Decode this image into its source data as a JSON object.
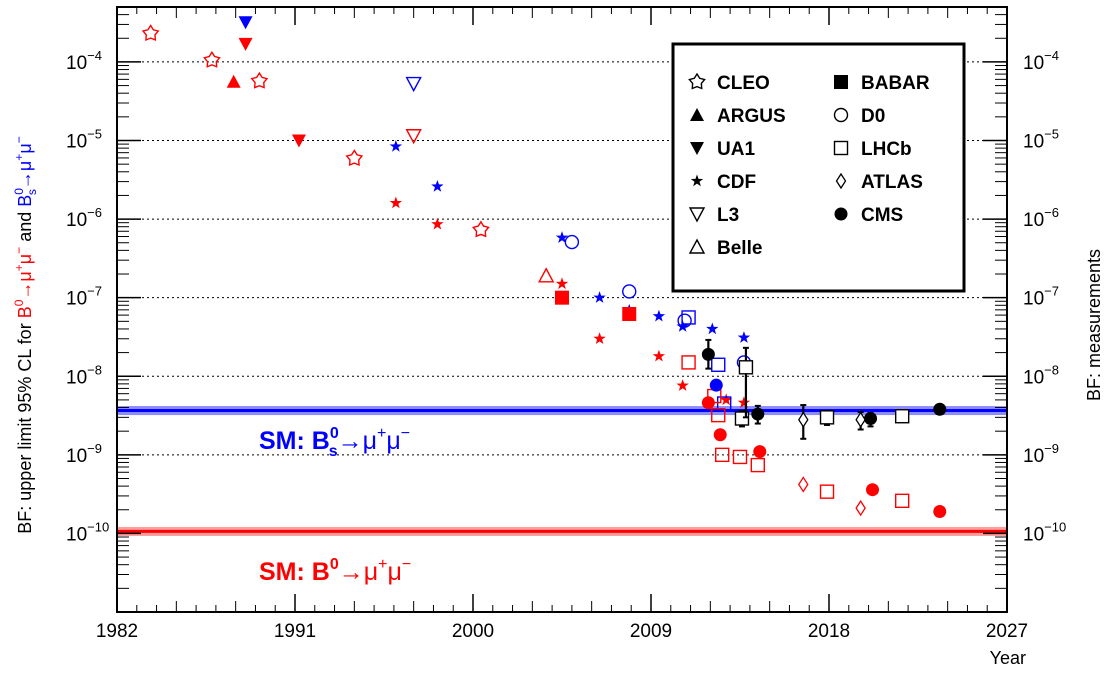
{
  "chart_data": {
    "type": "scatter",
    "x_axis": {
      "title": "Year",
      "range": [
        1982,
        2027
      ],
      "tick_values": [
        1982,
        1991,
        2000,
        2009,
        2018,
        2027
      ],
      "tick_labels": [
        "1982",
        "1991",
        "2000",
        "2009",
        "2018",
        "2027"
      ]
    },
    "y_axis": {
      "scale": "log",
      "range": [
        1e-11,
        0.0005
      ],
      "tick_values": [
        1e-10,
        1e-09,
        1e-08,
        1e-07,
        1e-06,
        1e-05,
        0.0001
      ],
      "tick_base": "10",
      "tick_exponents": [
        "−10",
        "−9",
        "−8",
        "−7",
        "−6",
        "−5",
        "−4"
      ],
      "grid": "dotted",
      "title_left": {
        "prefix": "BF: upper limit 95% CL for ",
        "bd_B": "B",
        "bd_sup": "0",
        "bd_rest": "→μ",
        "bd_sup2": "+",
        "bd_mu": "μ",
        "bd_sup3": "−",
        "and": " and ",
        "bs_B": "B",
        "bs_sup": "0",
        "bs_sub": "s",
        "bs_rest": "→μ",
        "bs_sup2": "+",
        "bs_mu": "μ",
        "bs_sup3": "−"
      },
      "title_right": "BF: measurements"
    },
    "colors": {
      "bd": "#ff0000",
      "bs": "#0000ff",
      "measurement": "#000000"
    },
    "sm_lines": [
      {
        "channel": "bs",
        "value": 3.66e-09,
        "color": "#0000ff",
        "band_color": "#8c8cff",
        "label": {
          "pre": "SM: B",
          "sup": "0",
          "sub": "s",
          "rest": "→μ",
          "sup2": "+",
          "mu": "μ",
          "sup3": "−"
        }
      },
      {
        "channel": "bd",
        "value": 1.06e-10,
        "color": "#ff0000",
        "band_color": "#ff9c9c",
        "label": {
          "pre": "SM: B",
          "sup": "0",
          "sub": "",
          "rest": "→μ",
          "sup2": "+",
          "mu": "μ",
          "sup3": "−"
        }
      }
    ],
    "legend": {
      "placement": "top-right",
      "items": [
        {
          "marker": "star-open",
          "label": "CLEO"
        },
        {
          "marker": "square-filled",
          "label": "BABAR"
        },
        {
          "marker": "triangle-up-filled",
          "label": "ARGUS"
        },
        {
          "marker": "circle-open",
          "label": "D0"
        },
        {
          "marker": "triangle-down-filled",
          "label": "UA1"
        },
        {
          "marker": "square-open",
          "label": "LHCb"
        },
        {
          "marker": "star-filled",
          "label": "CDF"
        },
        {
          "marker": "diamond-open",
          "label": "ATLAS"
        },
        {
          "marker": "triangle-down-open",
          "label": "L3"
        },
        {
          "marker": "circle-filled",
          "label": "CMS"
        },
        {
          "marker": "triangle-up-open",
          "label": "Belle"
        }
      ]
    },
    "series": [
      {
        "experiment": "CLEO",
        "channel": "bd",
        "marker": "star-open",
        "points": [
          [
            1983.7,
            0.00023
          ],
          [
            1986.8,
            0.000105
          ],
          [
            1989.2,
            5.7e-05
          ],
          [
            1994.0,
            5.9e-06
          ],
          [
            2000.4,
            7.3e-07
          ]
        ]
      },
      {
        "experiment": "ARGUS",
        "channel": "bd",
        "marker": "triangle-up-filled",
        "points": [
          [
            1987.9,
            5.6e-05
          ]
        ]
      },
      {
        "experiment": "UA1",
        "channel": "bd",
        "marker": "triangle-down-filled",
        "points": [
          [
            1988.5,
            0.00017
          ],
          [
            1991.2,
            1e-05
          ]
        ]
      },
      {
        "experiment": "UA1",
        "channel": "bs",
        "marker": "triangle-down-filled",
        "points": [
          [
            1988.5,
            0.00032
          ]
        ]
      },
      {
        "experiment": "L3",
        "channel": "bs",
        "marker": "triangle-down-open",
        "points": [
          [
            1997.0,
            5.3e-05
          ]
        ]
      },
      {
        "experiment": "L3",
        "channel": "bd",
        "marker": "triangle-down-open",
        "points": [
          [
            1997.0,
            1.15e-05
          ]
        ]
      },
      {
        "experiment": "CDF",
        "channel": "bs",
        "marker": "star-filled",
        "points": [
          [
            1996.1,
            8.4e-06
          ],
          [
            1998.2,
            2.6e-06
          ],
          [
            2004.5,
            5.8e-07
          ],
          [
            2006.4,
            1e-07
          ],
          [
            2007.9,
            6.9e-08
          ],
          [
            2009.4,
            5.8e-08
          ],
          [
            2010.6,
            4.3e-08
          ],
          [
            2012.1,
            4e-08
          ],
          [
            2013.7,
            3.1e-08
          ]
        ]
      },
      {
        "experiment": "CDF",
        "channel": "bd",
        "marker": "star-filled",
        "points": [
          [
            1996.1,
            1.6e-06
          ],
          [
            1998.2,
            8.6e-07
          ],
          [
            2004.5,
            1.5e-07
          ],
          [
            2006.4,
            3e-08
          ],
          [
            2009.4,
            1.8e-08
          ],
          [
            2010.6,
            7.6e-09
          ],
          [
            2012.8,
            5e-09
          ],
          [
            2013.7,
            4.6e-09
          ]
        ]
      },
      {
        "experiment": "Belle",
        "channel": "bd",
        "marker": "triangle-up-open",
        "points": [
          [
            2003.7,
            1.9e-07
          ]
        ]
      },
      {
        "experiment": "BABAR",
        "channel": "bd",
        "marker": "square-filled",
        "points": [
          [
            2004.5,
            1e-07
          ],
          [
            2007.9,
            6.2e-08
          ]
        ]
      },
      {
        "experiment": "D0",
        "channel": "bs",
        "marker": "circle-open",
        "points": [
          [
            2005.0,
            5.1e-07
          ],
          [
            2007.9,
            1.2e-07
          ],
          [
            2010.7,
            5.1e-08
          ],
          [
            2013.7,
            1.5e-08
          ]
        ]
      },
      {
        "experiment": "LHCb",
        "channel": "bs",
        "marker": "square-open",
        "points": [
          [
            2010.9,
            5.6e-08
          ],
          [
            2012.4,
            1.4e-08
          ],
          [
            2012.7,
            4.5e-09
          ]
        ]
      },
      {
        "experiment": "LHCb",
        "channel": "bd",
        "marker": "square-open",
        "points": [
          [
            2010.9,
            1.5e-08
          ],
          [
            2012.2,
            5.6e-09
          ],
          [
            2012.4,
            3.2e-09
          ],
          [
            2012.6,
            1e-09
          ],
          [
            2013.5,
            9.4e-10
          ],
          [
            2014.4,
            7.4e-10
          ],
          [
            2017.9,
            3.4e-10
          ],
          [
            2021.7,
            2.6e-10
          ]
        ]
      },
      {
        "experiment": "CMS",
        "channel": "bs",
        "marker": "circle-filled",
        "points": [
          [
            2012.3,
            7.7e-09
          ]
        ]
      },
      {
        "experiment": "CMS",
        "channel": "bd",
        "marker": "circle-filled",
        "points": [
          [
            2011.9,
            4.6e-09
          ],
          [
            2012.5,
            1.8e-09
          ],
          [
            2014.5,
            1.1e-09
          ],
          [
            2020.2,
            3.6e-10
          ],
          [
            2023.6,
            1.9e-10
          ]
        ]
      },
      {
        "experiment": "ATLAS",
        "channel": "bd",
        "marker": "diamond-open",
        "points": [
          [
            2016.7,
            4.2e-10
          ],
          [
            2019.6,
            2.1e-10
          ]
        ]
      }
    ],
    "measurements": [
      {
        "experiment": "CMS",
        "marker": "circle-filled",
        "x": 2011.9,
        "y": 1.9e-08,
        "err_low": 1.25e-08,
        "err_high": 2.9e-08
      },
      {
        "experiment": "LHCb",
        "marker": "square-open",
        "x": 2013.6,
        "y": 2.9e-09,
        "err_low": 2.3e-09,
        "err_high": 3.6e-09
      },
      {
        "experiment": "CMS",
        "marker": "circle-filled",
        "x": 2014.4,
        "y": 3.3e-09,
        "err_low": 2.5e-09,
        "err_high": 4.2e-09
      },
      {
        "experiment": "LHCb",
        "marker": "square-open",
        "x": 2013.8,
        "y": 1.3e-08,
        "err_low": 3e-09,
        "err_high": 2.3e-08
      },
      {
        "experiment": "ATLAS",
        "marker": "diamond-open",
        "x": 2016.7,
        "y": 2.8e-09,
        "err_low": 1.6e-09,
        "err_high": 4.3e-09
      },
      {
        "experiment": "LHCb",
        "marker": "square-open",
        "x": 2017.9,
        "y": 3e-09,
        "err_low": 2.4e-09,
        "err_high": 3.6e-09
      },
      {
        "experiment": "ATLAS",
        "marker": "diamond-open",
        "x": 2019.6,
        "y": 2.8e-09,
        "err_low": 2.1e-09,
        "err_high": 3.5e-09
      },
      {
        "experiment": "CMS",
        "marker": "circle-filled",
        "x": 2020.1,
        "y": 2.9e-09,
        "err_low": 2.3e-09,
        "err_high": 3.4e-09
      },
      {
        "experiment": "LHCb",
        "marker": "square-open",
        "x": 2021.7,
        "y": 3.1e-09,
        "err_low": 2.7e-09,
        "err_high": 3.5e-09
      },
      {
        "experiment": "CMS",
        "marker": "circle-filled",
        "x": 2023.6,
        "y": 3.8e-09,
        "err_low": 3.4e-09,
        "err_high": 4.2e-09
      }
    ]
  }
}
